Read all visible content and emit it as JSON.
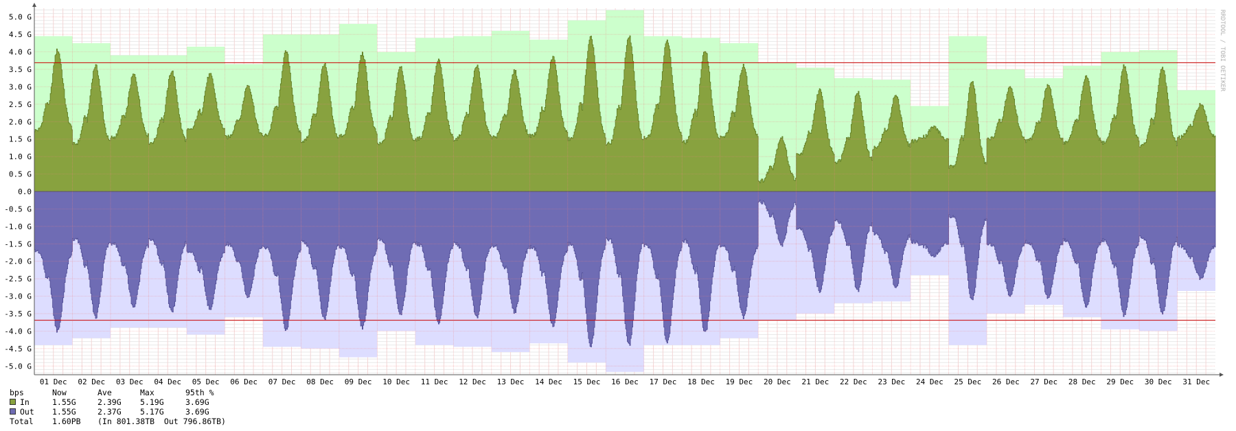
{
  "watermark": "RRDTOOL / TOBI OETIKER",
  "legend": {
    "header": [
      "bps",
      "Now",
      "Ave",
      "Max",
      "95th %"
    ],
    "rows": [
      {
        "name": "In",
        "color": "#88a23f",
        "now": "1.55G",
        "ave": "2.39G",
        "max": "5.19G",
        "p95": "3.69G"
      },
      {
        "name": "Out",
        "color": "#6f6cb4",
        "now": "1.55G",
        "ave": "2.37G",
        "max": "5.17G",
        "p95": "3.69G"
      }
    ],
    "total_label": "Total",
    "total_value": "1.60PB",
    "total_detail": "(In 801.38TB  Out 796.86TB)"
  },
  "chart_data": {
    "type": "area",
    "unit": "G",
    "ylim": [
      -5.25,
      5.25
    ],
    "y_ticks": [
      {
        "v": 5,
        "label": "5.0 G"
      },
      {
        "v": 4.5,
        "label": "4.5 G"
      },
      {
        "v": 4,
        "label": "4.0 G"
      },
      {
        "v": 3.5,
        "label": "3.5 G"
      },
      {
        "v": 3,
        "label": "3.0 G"
      },
      {
        "v": 2.5,
        "label": "2.5 G"
      },
      {
        "v": 2,
        "label": "2.0 G"
      },
      {
        "v": 1.5,
        "label": "1.5 G"
      },
      {
        "v": 1,
        "label": "1.0 G"
      },
      {
        "v": 0.5,
        "label": "0.5 G"
      },
      {
        "v": 0,
        "label": "0.0"
      },
      {
        "v": -0.5,
        "label": "-0.5 G"
      },
      {
        "v": -1,
        "label": "-1.0 G"
      },
      {
        "v": -1.5,
        "label": "-1.5 G"
      },
      {
        "v": -2,
        "label": "-2.0 G"
      },
      {
        "v": -2.5,
        "label": "-2.5 G"
      },
      {
        "v": -3,
        "label": "-3.0 G"
      },
      {
        "v": -3.5,
        "label": "-3.5 G"
      },
      {
        "v": -4,
        "label": "-4.0 G"
      },
      {
        "v": -4.5,
        "label": "-4.5 G"
      },
      {
        "v": -5,
        "label": "-5.0 G"
      }
    ],
    "categories": [
      "01 Dec",
      "02 Dec",
      "03 Dec",
      "04 Dec",
      "05 Dec",
      "06 Dec",
      "07 Dec",
      "08 Dec",
      "09 Dec",
      "10 Dec",
      "11 Dec",
      "12 Dec",
      "13 Dec",
      "14 Dec",
      "15 Dec",
      "16 Dec",
      "17 Dec",
      "18 Dec",
      "19 Dec",
      "20 Dec",
      "21 Dec",
      "22 Dec",
      "23 Dec",
      "24 Dec",
      "25 Dec",
      "26 Dec",
      "27 Dec",
      "28 Dec",
      "29 Dec",
      "30 Dec",
      "31 Dec"
    ],
    "percentile_95": 3.69,
    "series": [
      {
        "name": "In",
        "color": "#88a23f",
        "daily_max_color": "#ccffcc",
        "daily_max": [
          4.45,
          4.25,
          3.9,
          3.9,
          4.15,
          3.65,
          4.5,
          4.5,
          4.8,
          4.0,
          4.4,
          4.45,
          4.6,
          4.35,
          4.9,
          5.19,
          4.45,
          4.4,
          4.25,
          3.7,
          3.55,
          3.25,
          3.2,
          2.45,
          4.45,
          3.5,
          3.25,
          3.6,
          4.0,
          4.05,
          2.9
        ],
        "daily_peak": [
          4.05,
          3.6,
          3.35,
          3.45,
          3.35,
          3.05,
          4.0,
          3.65,
          3.95,
          3.6,
          3.75,
          3.6,
          3.45,
          3.85,
          4.4,
          4.45,
          4.3,
          4.05,
          3.6,
          1.55,
          2.9,
          2.85,
          2.75,
          1.85,
          3.15,
          3.0,
          3.05,
          3.3,
          3.6,
          3.55,
          2.5
        ],
        "daily_low": [
          1.75,
          1.35,
          1.55,
          1.4,
          1.75,
          1.55,
          1.6,
          1.45,
          1.6,
          1.35,
          1.5,
          1.5,
          1.55,
          1.6,
          1.5,
          1.35,
          1.55,
          1.4,
          1.55,
          0.3,
          1.05,
          0.85,
          1.25,
          1.45,
          0.7,
          1.5,
          1.45,
          1.4,
          1.4,
          1.3,
          1.55
        ]
      },
      {
        "name": "Out",
        "color": "#6f6cb4",
        "daily_max_color": "#ddddff",
        "daily_max": [
          4.4,
          4.2,
          3.9,
          3.9,
          4.1,
          3.6,
          4.45,
          4.5,
          4.75,
          4.0,
          4.4,
          4.45,
          4.6,
          4.35,
          4.9,
          5.17,
          4.4,
          4.4,
          4.2,
          3.7,
          3.5,
          3.2,
          3.15,
          2.4,
          4.4,
          3.5,
          3.25,
          3.6,
          3.95,
          4.0,
          2.85
        ],
        "daily_peak": [
          4.0,
          3.6,
          3.3,
          3.45,
          3.35,
          3.05,
          3.95,
          3.65,
          3.9,
          3.55,
          3.75,
          3.6,
          3.45,
          3.85,
          4.4,
          4.4,
          4.3,
          4.05,
          3.6,
          1.55,
          2.85,
          2.85,
          2.75,
          1.85,
          3.1,
          3.0,
          3.05,
          3.3,
          3.55,
          3.5,
          2.5
        ],
        "daily_low": [
          1.7,
          1.35,
          1.5,
          1.4,
          1.7,
          1.5,
          1.6,
          1.45,
          1.6,
          1.35,
          1.5,
          1.5,
          1.55,
          1.6,
          1.5,
          1.35,
          1.55,
          1.4,
          1.55,
          0.3,
          1.05,
          0.85,
          1.2,
          1.45,
          0.7,
          1.5,
          1.45,
          1.4,
          1.4,
          1.3,
          1.55
        ]
      }
    ]
  }
}
